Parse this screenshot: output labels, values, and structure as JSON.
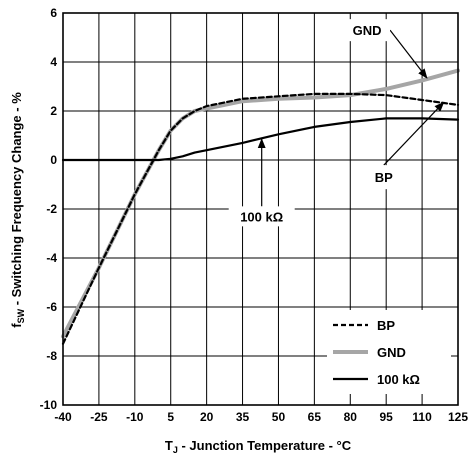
{
  "chart_data": {
    "type": "line",
    "xlabel": {
      "main": "T",
      "sub": "J",
      "rest": " - Junction Temperature - °C"
    },
    "ylabel": {
      "main": "f",
      "sub": "SW",
      "rest": " - Switching Frequency Change - %"
    },
    "xlim": [
      -40,
      125
    ],
    "ylim": [
      -10,
      6
    ],
    "xticks": [
      -40,
      -25,
      -10,
      5,
      20,
      35,
      50,
      65,
      80,
      95,
      110,
      125
    ],
    "xtick_labels": [
      "-40",
      "-25",
      "-10",
      "5",
      "20",
      "35",
      "50",
      "65",
      "80",
      "95",
      "110",
      "125"
    ],
    "yticks": [
      -10,
      -8,
      -6,
      -4,
      -2,
      0,
      2,
      4,
      6
    ],
    "ytick_labels": [
      "-10",
      "-8",
      "-6",
      "-4",
      "-2",
      "0",
      "2",
      "4",
      "6"
    ],
    "grid": true,
    "legend_position": "bottom-right",
    "series": [
      {
        "name": "BP",
        "color": "#000000",
        "style": "dashed",
        "x": [
          -40,
          -25,
          -10,
          0,
          5,
          10,
          15,
          20,
          35,
          50,
          65,
          80,
          95,
          110,
          125
        ],
        "y": [
          -7.5,
          -4.4,
          -1.4,
          0.4,
          1.2,
          1.7,
          2.0,
          2.2,
          2.5,
          2.6,
          2.7,
          2.7,
          2.65,
          2.45,
          2.25
        ]
      },
      {
        "name": "GND",
        "color": "#a6a6a6",
        "style": "solid",
        "x": [
          -40,
          -25,
          -10,
          0,
          5,
          10,
          15,
          20,
          35,
          50,
          65,
          80,
          95,
          110,
          125
        ],
        "y": [
          -7.2,
          -4.4,
          -1.4,
          0.4,
          1.2,
          1.7,
          2.0,
          2.1,
          2.4,
          2.5,
          2.55,
          2.65,
          2.9,
          3.25,
          3.65
        ]
      },
      {
        "name": "100 kΩ",
        "color": "#000000",
        "style": "solid",
        "x": [
          -40,
          -25,
          -10,
          -5,
          0,
          5,
          10,
          15,
          20,
          35,
          50,
          65,
          80,
          95,
          110,
          125
        ],
        "y": [
          0,
          0,
          0,
          0,
          0,
          0.05,
          0.15,
          0.3,
          0.4,
          0.7,
          1.05,
          1.35,
          1.55,
          1.7,
          1.7,
          1.65
        ]
      }
    ],
    "annotations": [
      {
        "text": "GND",
        "series": "GND",
        "at": [
          112,
          3.35
        ],
        "label_at": [
          87,
          5.3
        ]
      },
      {
        "text": "BP",
        "series": "BP",
        "at": [
          119,
          2.35
        ],
        "label_at": [
          94,
          -0.7
        ]
      },
      {
        "text": "100 kΩ",
        "series": "100 kΩ",
        "at": [
          43,
          0.85
        ],
        "label_at": [
          43,
          -2.3
        ]
      }
    ]
  }
}
